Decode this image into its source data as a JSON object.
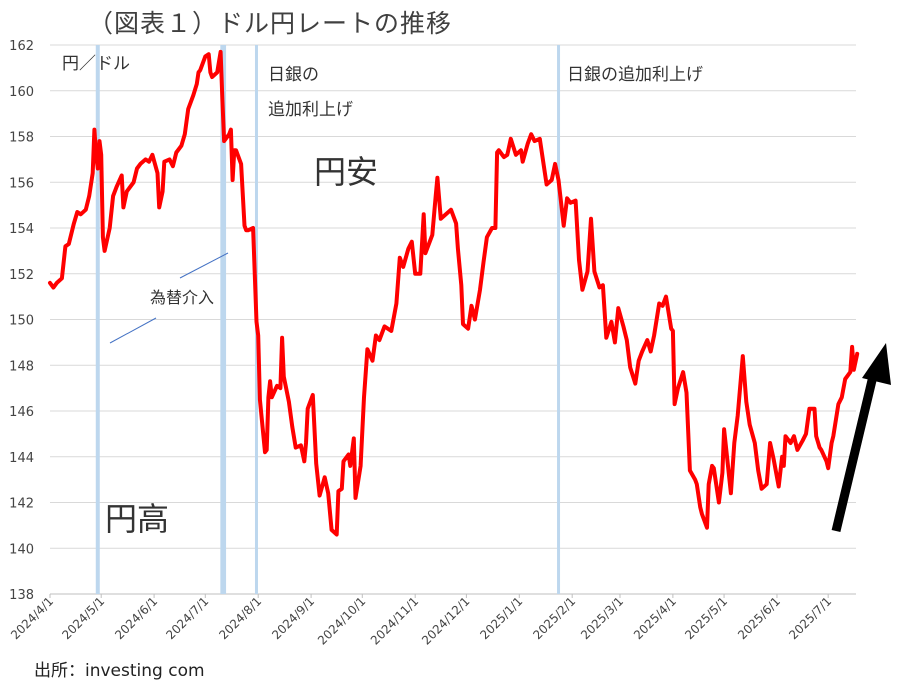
{
  "title": "（図表１）ドル円レートの推移",
  "source": "出所：investing com",
  "chart_data": {
    "type": "line",
    "ylabel": "円／ドル",
    "ylim": [
      138,
      162
    ],
    "yticks": [
      "162",
      "160",
      "158",
      "156",
      "154",
      "152",
      "150",
      "148",
      "146",
      "144",
      "142",
      "140",
      "138"
    ],
    "xticks": [
      "2024/4/1",
      "2024/5/1",
      "2024/6/1",
      "2024/7/1",
      "2024/8/1",
      "2024/9/1",
      "2024/10/1",
      "2024/11/1",
      "2024/12/1",
      "2025/1/1",
      "2025/2/1",
      "2025/3/1",
      "2025/4/1",
      "2025/5/1",
      "2025/6/1",
      "2025/7/1"
    ],
    "grid": true,
    "series_color": "#ff0000",
    "series": [
      {
        "points": [
          [
            "2024-04-01",
            151.6
          ],
          [
            "2024-04-03",
            151.4
          ],
          [
            "2024-04-05",
            151.6
          ],
          [
            "2024-04-08",
            151.8
          ],
          [
            "2024-04-10",
            153.2
          ],
          [
            "2024-04-12",
            153.3
          ],
          [
            "2024-04-15",
            154.2
          ],
          [
            "2024-04-17",
            154.7
          ],
          [
            "2024-04-19",
            154.6
          ],
          [
            "2024-04-22",
            154.8
          ],
          [
            "2024-04-24",
            155.4
          ],
          [
            "2024-04-26",
            156.4
          ],
          [
            "2024-04-27",
            158.3
          ],
          [
            "2024-04-28",
            157.2
          ],
          [
            "2024-04-29",
            156.6
          ],
          [
            "2024-04-30",
            157.8
          ],
          [
            "2024-05-01",
            157.2
          ],
          [
            "2024-05-02",
            153.6
          ],
          [
            "2024-05-03",
            153.0
          ],
          [
            "2024-05-06",
            154.0
          ],
          [
            "2024-05-08",
            155.4
          ],
          [
            "2024-05-10",
            155.8
          ],
          [
            "2024-05-13",
            156.3
          ],
          [
            "2024-05-14",
            154.9
          ],
          [
            "2024-05-16",
            155.6
          ],
          [
            "2024-05-20",
            156.0
          ],
          [
            "2024-05-22",
            156.6
          ],
          [
            "2024-05-24",
            156.8
          ],
          [
            "2024-05-27",
            157.0
          ],
          [
            "2024-05-29",
            156.9
          ],
          [
            "2024-05-31",
            157.2
          ],
          [
            "2024-06-03",
            156.4
          ],
          [
            "2024-06-04",
            154.9
          ],
          [
            "2024-06-06",
            155.6
          ],
          [
            "2024-06-07",
            156.9
          ],
          [
            "2024-06-10",
            157.0
          ],
          [
            "2024-06-12",
            156.7
          ],
          [
            "2024-06-14",
            157.3
          ],
          [
            "2024-06-17",
            157.6
          ],
          [
            "2024-06-19",
            158.1
          ],
          [
            "2024-06-21",
            159.2
          ],
          [
            "2024-06-24",
            159.8
          ],
          [
            "2024-06-26",
            160.3
          ],
          [
            "2024-06-27",
            160.8
          ],
          [
            "2024-06-28",
            160.9
          ],
          [
            "2024-07-01",
            161.5
          ],
          [
            "2024-07-03",
            161.6
          ],
          [
            "2024-07-04",
            160.8
          ],
          [
            "2024-07-05",
            160.6
          ],
          [
            "2024-07-08",
            160.8
          ],
          [
            "2024-07-10",
            161.7
          ],
          [
            "2024-07-11",
            159.6
          ],
          [
            "2024-07-12",
            157.8
          ],
          [
            "2024-07-15",
            158.1
          ],
          [
            "2024-07-16",
            158.3
          ],
          [
            "2024-07-17",
            156.1
          ],
          [
            "2024-07-18",
            157.4
          ],
          [
            "2024-07-19",
            157.4
          ],
          [
            "2024-07-22",
            156.8
          ],
          [
            "2024-07-24",
            154.1
          ],
          [
            "2024-07-25",
            153.9
          ],
          [
            "2024-07-26",
            153.9
          ],
          [
            "2024-07-29",
            154.0
          ],
          [
            "2024-07-31",
            149.9
          ],
          [
            "2024-08-01",
            149.3
          ],
          [
            "2024-08-02",
            146.5
          ],
          [
            "2024-08-05",
            144.2
          ],
          [
            "2024-08-06",
            144.3
          ],
          [
            "2024-08-07",
            146.6
          ],
          [
            "2024-08-08",
            147.3
          ],
          [
            "2024-08-09",
            146.6
          ],
          [
            "2024-08-12",
            147.1
          ],
          [
            "2024-08-14",
            147.0
          ],
          [
            "2024-08-15",
            149.2
          ],
          [
            "2024-08-16",
            147.5
          ],
          [
            "2024-08-19",
            146.4
          ],
          [
            "2024-08-21",
            145.3
          ],
          [
            "2024-08-23",
            144.4
          ],
          [
            "2024-08-26",
            144.5
          ],
          [
            "2024-08-28",
            143.8
          ],
          [
            "2024-08-29",
            144.6
          ],
          [
            "2024-08-30",
            146.1
          ],
          [
            "2024-09-02",
            146.7
          ],
          [
            "2024-09-04",
            143.7
          ],
          [
            "2024-09-06",
            142.3
          ],
          [
            "2024-09-09",
            143.1
          ],
          [
            "2024-09-11",
            142.4
          ],
          [
            "2024-09-13",
            140.8
          ],
          [
            "2024-09-16",
            140.6
          ],
          [
            "2024-09-17",
            142.5
          ],
          [
            "2024-09-19",
            142.6
          ],
          [
            "2024-09-20",
            143.8
          ],
          [
            "2024-09-23",
            144.1
          ],
          [
            "2024-09-24",
            143.6
          ],
          [
            "2024-09-26",
            144.8
          ],
          [
            "2024-09-27",
            142.2
          ],
          [
            "2024-09-30",
            143.6
          ],
          [
            "2024-10-02",
            146.6
          ],
          [
            "2024-10-04",
            148.7
          ],
          [
            "2024-10-07",
            148.2
          ],
          [
            "2024-10-09",
            149.3
          ],
          [
            "2024-10-11",
            149.1
          ],
          [
            "2024-10-14",
            149.7
          ],
          [
            "2024-10-16",
            149.6
          ],
          [
            "2024-10-18",
            149.5
          ],
          [
            "2024-10-21",
            150.7
          ],
          [
            "2024-10-23",
            152.7
          ],
          [
            "2024-10-25",
            152.3
          ],
          [
            "2024-10-28",
            153.1
          ],
          [
            "2024-10-30",
            153.4
          ],
          [
            "2024-11-01",
            152.0
          ],
          [
            "2024-11-04",
            152.0
          ],
          [
            "2024-11-06",
            154.6
          ],
          [
            "2024-11-07",
            152.9
          ],
          [
            "2024-11-11",
            153.7
          ],
          [
            "2024-11-13",
            155.4
          ],
          [
            "2024-11-14",
            156.2
          ],
          [
            "2024-11-16",
            154.4
          ],
          [
            "2024-11-19",
            154.6
          ],
          [
            "2024-11-22",
            154.8
          ],
          [
            "2024-11-25",
            154.2
          ],
          [
            "2024-11-26",
            153.1
          ],
          [
            "2024-11-28",
            151.5
          ],
          [
            "2024-11-29",
            149.8
          ],
          [
            "2024-12-02",
            149.6
          ],
          [
            "2024-12-04",
            150.6
          ],
          [
            "2024-12-06",
            150.0
          ],
          [
            "2024-12-09",
            151.3
          ],
          [
            "2024-12-11",
            152.5
          ],
          [
            "2024-12-13",
            153.6
          ],
          [
            "2024-12-16",
            154.0
          ],
          [
            "2024-12-18",
            154.0
          ],
          [
            "2024-12-19",
            157.3
          ],
          [
            "2024-12-20",
            157.4
          ],
          [
            "2024-12-23",
            157.1
          ],
          [
            "2024-12-25",
            157.2
          ],
          [
            "2024-12-27",
            157.9
          ],
          [
            "2024-12-30",
            157.2
          ],
          [
            "2025-01-02",
            157.4
          ],
          [
            "2025-01-03",
            156.9
          ],
          [
            "2025-01-06",
            157.7
          ],
          [
            "2025-01-08",
            158.1
          ],
          [
            "2025-01-10",
            157.8
          ],
          [
            "2025-01-13",
            157.9
          ],
          [
            "2025-01-15",
            156.9
          ],
          [
            "2025-01-17",
            155.9
          ],
          [
            "2025-01-20",
            156.1
          ],
          [
            "2025-01-22",
            156.8
          ],
          [
            "2025-01-24",
            156.1
          ],
          [
            "2025-01-27",
            154.1
          ],
          [
            "2025-01-29",
            155.3
          ],
          [
            "2025-01-31",
            155.1
          ],
          [
            "2025-02-03",
            155.2
          ],
          [
            "2025-02-05",
            152.6
          ],
          [
            "2025-02-07",
            151.3
          ],
          [
            "2025-02-10",
            152.1
          ],
          [
            "2025-02-12",
            154.4
          ],
          [
            "2025-02-14",
            152.1
          ],
          [
            "2025-02-17",
            151.4
          ],
          [
            "2025-02-19",
            151.5
          ],
          [
            "2025-02-21",
            149.2
          ],
          [
            "2025-02-24",
            149.9
          ],
          [
            "2025-02-26",
            149.0
          ],
          [
            "2025-02-28",
            150.5
          ],
          [
            "2025-03-03",
            149.7
          ],
          [
            "2025-03-05",
            149.1
          ],
          [
            "2025-03-07",
            147.9
          ],
          [
            "2025-03-10",
            147.2
          ],
          [
            "2025-03-12",
            148.2
          ],
          [
            "2025-03-14",
            148.6
          ],
          [
            "2025-03-17",
            149.1
          ],
          [
            "2025-03-19",
            148.6
          ],
          [
            "2025-03-21",
            149.3
          ],
          [
            "2025-03-24",
            150.7
          ],
          [
            "2025-03-26",
            150.6
          ],
          [
            "2025-03-28",
            151.0
          ],
          [
            "2025-03-31",
            149.6
          ],
          [
            "2025-04-01",
            149.5
          ],
          [
            "2025-04-02",
            146.3
          ],
          [
            "2025-04-04",
            147.0
          ],
          [
            "2025-04-07",
            147.7
          ],
          [
            "2025-04-09",
            146.8
          ],
          [
            "2025-04-11",
            143.4
          ],
          [
            "2025-04-14",
            143.0
          ],
          [
            "2025-04-15",
            142.8
          ],
          [
            "2025-04-17",
            141.8
          ],
          [
            "2025-04-18",
            141.5
          ],
          [
            "2025-04-21",
            140.9
          ],
          [
            "2025-04-22",
            142.8
          ],
          [
            "2025-04-24",
            143.6
          ],
          [
            "2025-04-25",
            143.5
          ],
          [
            "2025-04-28",
            142.0
          ],
          [
            "2025-04-30",
            143.3
          ],
          [
            "2025-05-01",
            145.2
          ],
          [
            "2025-05-02",
            144.5
          ],
          [
            "2025-05-05",
            142.4
          ],
          [
            "2025-05-07",
            144.6
          ],
          [
            "2025-05-09",
            145.8
          ],
          [
            "2025-05-12",
            148.4
          ],
          [
            "2025-05-14",
            146.4
          ],
          [
            "2025-05-16",
            145.4
          ],
          [
            "2025-05-19",
            144.6
          ],
          [
            "2025-05-21",
            143.4
          ],
          [
            "2025-05-23",
            142.6
          ],
          [
            "2025-05-26",
            142.8
          ],
          [
            "2025-05-28",
            144.6
          ],
          [
            "2025-05-30",
            143.9
          ],
          [
            "2025-06-02",
            142.7
          ],
          [
            "2025-06-04",
            144.0
          ],
          [
            "2025-06-05",
            143.6
          ],
          [
            "2025-06-06",
            144.9
          ],
          [
            "2025-06-09",
            144.6
          ],
          [
            "2025-06-11",
            144.9
          ],
          [
            "2025-06-13",
            144.3
          ],
          [
            "2025-06-16",
            144.7
          ],
          [
            "2025-06-18",
            145.0
          ],
          [
            "2025-06-20",
            146.1
          ],
          [
            "2025-06-23",
            146.1
          ],
          [
            "2025-06-24",
            144.9
          ],
          [
            "2025-06-26",
            144.4
          ],
          [
            "2025-06-27",
            144.3
          ],
          [
            "2025-06-30",
            143.8
          ],
          [
            "2025-07-01",
            143.5
          ],
          [
            "2025-07-03",
            144.6
          ],
          [
            "2025-07-04",
            144.9
          ],
          [
            "2025-07-07",
            146.3
          ],
          [
            "2025-07-09",
            146.6
          ],
          [
            "2025-07-11",
            147.4
          ],
          [
            "2025-07-14",
            147.7
          ],
          [
            "2025-07-15",
            148.8
          ],
          [
            "2025-07-16",
            147.8
          ],
          [
            "2025-07-18",
            148.5
          ]
        ]
      }
    ]
  },
  "annotations": {
    "boj_hike_1_line1": "日銀の",
    "boj_hike_1_line2": "追加利上げ",
    "boj_hike_2": "日銀の追加利上げ",
    "weak_yen": "円安",
    "strong_yen": "円高",
    "intervention": "為替介入"
  },
  "event_dates": {
    "intervention": [
      "2024-04-29",
      "2024-07-11",
      "2024-07-12"
    ],
    "boj_hikes": [
      "2024-07-31",
      "2025-01-24"
    ]
  },
  "colors": {
    "event_line": "#bdd7ee",
    "grid": "#d9d9d9",
    "arrow": "#000000"
  }
}
